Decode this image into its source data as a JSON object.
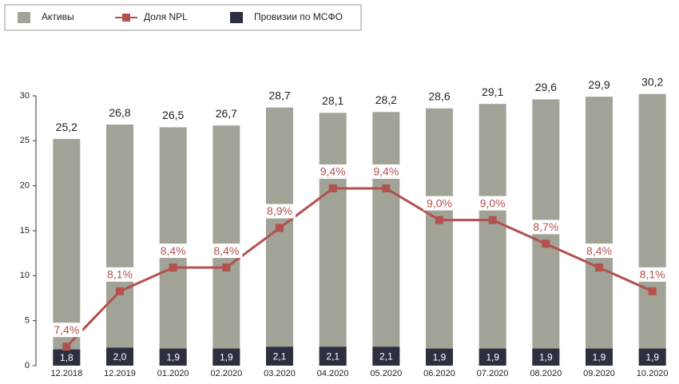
{
  "chart_data": {
    "type": "bar",
    "categories": [
      "12.2018",
      "12.2019",
      "01.2020",
      "02.2020",
      "03.2020",
      "04.2020",
      "05.2020",
      "06.2020",
      "07.2020",
      "08.2020",
      "09.2020",
      "10.2020"
    ],
    "series": [
      {
        "name": "Активы",
        "type": "bar",
        "color": "#a2a397",
        "values": [
          25.2,
          26.8,
          26.5,
          26.7,
          28.7,
          28.1,
          28.2,
          28.6,
          29.1,
          29.6,
          29.9,
          30.2
        ],
        "value_labels": [
          "25,2",
          "26,8",
          "26,5",
          "26,7",
          "28,7",
          "28,1",
          "28,2",
          "28,6",
          "29,1",
          "29,6",
          "29,9",
          "30,2"
        ]
      },
      {
        "name": "Доля NPL",
        "type": "line",
        "axis": "y2",
        "color": "#b3514e",
        "values": [
          7.4,
          8.1,
          8.4,
          8.4,
          8.9,
          9.4,
          9.4,
          9.0,
          9.0,
          8.7,
          8.4,
          8.1
        ],
        "value_labels": [
          "7,4%",
          "8,1%",
          "8,4%",
          "8,4%",
          "8,9%",
          "9,4%",
          "9,4%",
          "9,0%",
          "9,0%",
          "8,7%",
          "8,4%",
          "8,1%"
        ]
      },
      {
        "name": "Провизии по МСФО",
        "type": "bar",
        "color": "#2c2f40",
        "values": [
          1.8,
          2.0,
          1.9,
          1.9,
          2.1,
          2.1,
          2.1,
          1.9,
          1.9,
          1.9,
          1.9,
          1.9
        ],
        "value_labels": [
          "1,8",
          "2,0",
          "1,9",
          "1,9",
          "2,1",
          "2,1",
          "2,1",
          "1,9",
          "1,9",
          "1,9",
          "1,9",
          "1,9"
        ]
      }
    ],
    "ylim": [
      0,
      30
    ],
    "yticks": [
      0,
      5,
      10,
      15,
      20,
      25,
      30
    ],
    "y2lim": [
      7.16,
      10.57
    ],
    "legend": "top-left"
  }
}
